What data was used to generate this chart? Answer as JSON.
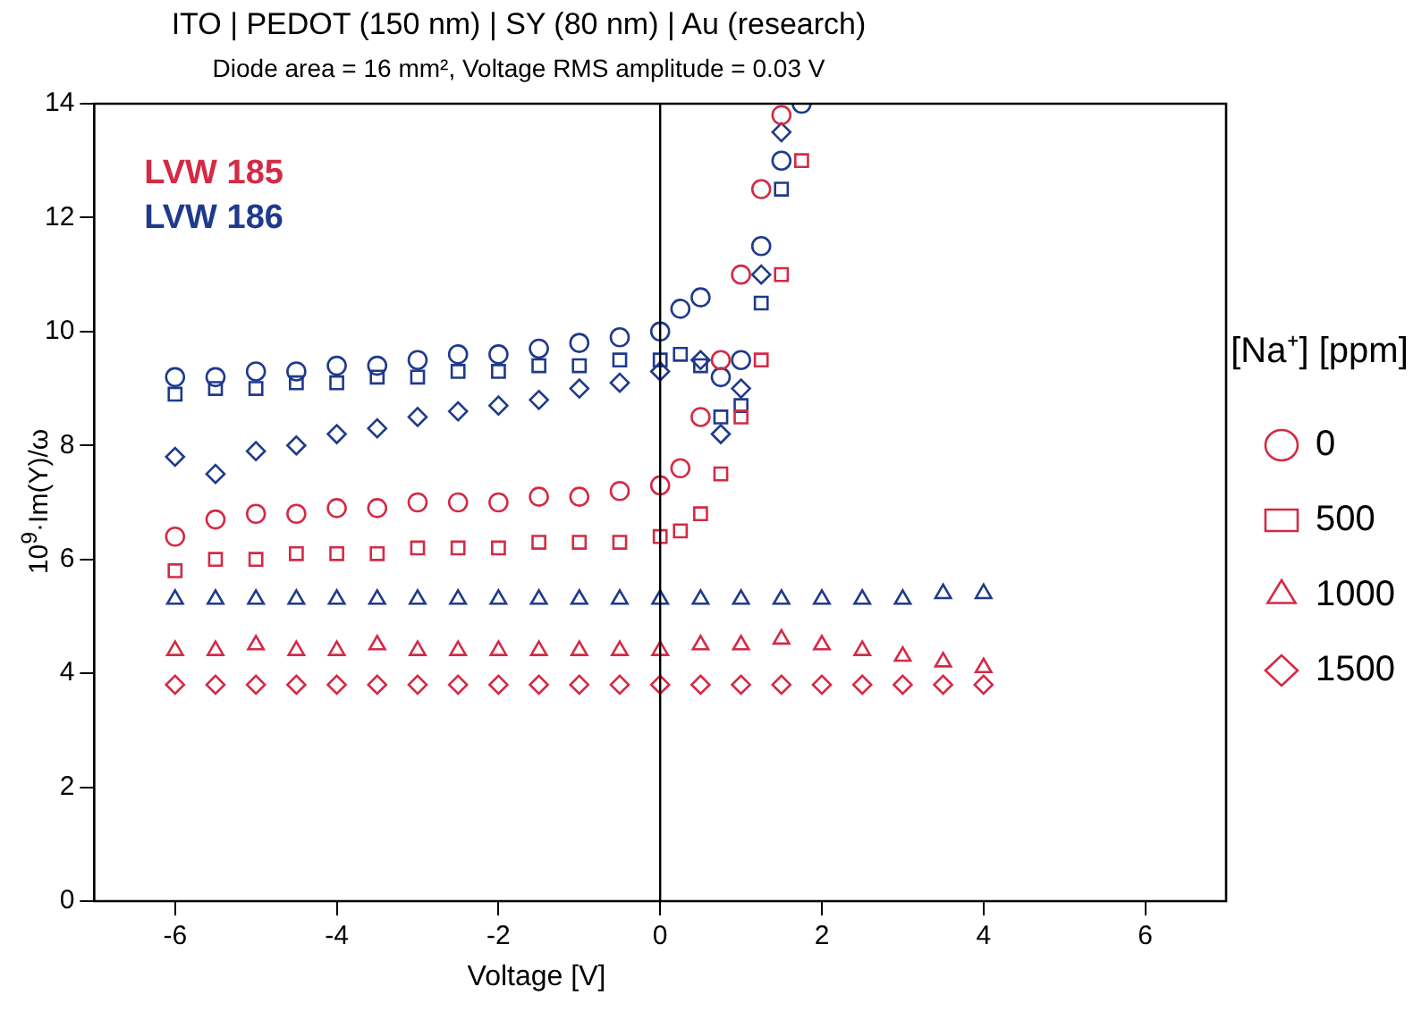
{
  "chart_data": {
    "type": "scatter",
    "title": "ITO | PEDOT (150 nm) | SY (80 nm) | Au (research)",
    "subtitle": "Diode area = 16 mm², Voltage RMS amplitude = 0.03 V",
    "xlabel": "Voltage [V]",
    "ylabel": "10$^{9}$·Im(Y)/ω",
    "legend_title": "[Na⁺] [ppm]",
    "legend": "right",
    "grid": false,
    "xlim": [
      -7,
      7
    ],
    "xticks": [
      -6,
      -4,
      -2,
      0,
      2,
      4,
      6
    ],
    "ylim": [
      0,
      14
    ],
    "yticks": [
      0,
      2,
      4,
      6,
      8,
      10,
      12,
      14
    ],
    "annotations": [
      "LVW 185",
      "LVW 186"
    ],
    "ref_lines": [
      {
        "axis": "x",
        "value": 0,
        "color": "#000000"
      }
    ],
    "series": [
      {
        "name": "0",
        "marker": "circle",
        "color": "#d42a45",
        "x": [
          -6,
          -5.5,
          -5,
          -4.5,
          -4,
          -3.5,
          -3,
          -2.5,
          -2,
          -1.5,
          -1,
          -0.5,
          0,
          0.25,
          0.5,
          0.75,
          1,
          1.25,
          1.5
        ],
        "values": [
          6.4,
          6.7,
          6.8,
          6.8,
          6.9,
          6.9,
          7.0,
          7.0,
          7.0,
          7.1,
          7.1,
          7.2,
          7.3,
          7.6,
          8.5,
          9.5,
          11.0,
          12.5,
          13.8
        ]
      },
      {
        "name": "500",
        "marker": "square",
        "color": "#d42a45",
        "x": [
          -6,
          -5.5,
          -5,
          -4.5,
          -4,
          -3.5,
          -3,
          -2.5,
          -2,
          -1.5,
          -1,
          -0.5,
          0,
          0.25,
          0.5,
          0.75,
          1,
          1.25,
          1.5,
          1.75
        ],
        "values": [
          5.8,
          6.0,
          6.0,
          6.1,
          6.1,
          6.1,
          6.2,
          6.2,
          6.2,
          6.3,
          6.3,
          6.3,
          6.4,
          6.5,
          6.8,
          7.5,
          8.5,
          9.5,
          11.0,
          13.0
        ]
      },
      {
        "name": "1000",
        "marker": "triangle",
        "color": "#d42a45",
        "x": [
          -6,
          -5.5,
          -5,
          -4.5,
          -4,
          -3.5,
          -3,
          -2.5,
          -2,
          -1.5,
          -1,
          -0.5,
          0,
          0.5,
          1,
          1.5,
          2,
          2.5,
          3,
          3.5,
          4
        ],
        "values": [
          4.4,
          4.4,
          4.5,
          4.4,
          4.4,
          4.5,
          4.4,
          4.4,
          4.4,
          4.4,
          4.4,
          4.4,
          4.4,
          4.5,
          4.5,
          4.6,
          4.5,
          4.4,
          4.3,
          4.2,
          4.1
        ]
      },
      {
        "name": "1500",
        "marker": "diamond",
        "color": "#d42a45",
        "x": [
          -6,
          -5.5,
          -5,
          -4.5,
          -4,
          -3.5,
          -3,
          -2.5,
          -2,
          -1.5,
          -1,
          -0.5,
          0,
          0.5,
          1,
          1.5,
          2,
          2.5,
          3,
          3.5,
          4
        ],
        "values": [
          3.8,
          3.8,
          3.8,
          3.8,
          3.8,
          3.8,
          3.8,
          3.8,
          3.8,
          3.8,
          3.8,
          3.8,
          3.8,
          3.8,
          3.8,
          3.8,
          3.8,
          3.8,
          3.8,
          3.8,
          3.8
        ]
      },
      {
        "marker": "circle",
        "color": "#1f3a8c",
        "x": [
          -6,
          -5.5,
          -5,
          -4.5,
          -4,
          -3.5,
          -3,
          -2.5,
          -2,
          -1.5,
          -1,
          -0.5,
          0,
          0.25,
          0.5,
          0.75,
          1,
          1.25,
          1.5,
          1.75
        ],
        "values": [
          9.2,
          9.2,
          9.3,
          9.3,
          9.4,
          9.4,
          9.5,
          9.6,
          9.6,
          9.7,
          9.8,
          9.9,
          10.0,
          10.4,
          10.6,
          9.2,
          9.5,
          11.5,
          13.0,
          14.0
        ]
      },
      {
        "marker": "square",
        "color": "#1f3a8c",
        "x": [
          -6,
          -5.5,
          -5,
          -4.5,
          -4,
          -3.5,
          -3,
          -2.5,
          -2,
          -1.5,
          -1,
          -0.5,
          0,
          0.25,
          0.5,
          0.75,
          1,
          1.25,
          1.5
        ],
        "values": [
          8.9,
          9.0,
          9.0,
          9.1,
          9.1,
          9.2,
          9.2,
          9.3,
          9.3,
          9.4,
          9.4,
          9.5,
          9.5,
          9.6,
          9.4,
          8.5,
          8.7,
          10.5,
          12.5
        ]
      },
      {
        "marker": "triangle",
        "color": "#1f3a8c",
        "x": [
          -6,
          -5.5,
          -5,
          -4.5,
          -4,
          -3.5,
          -3,
          -2.5,
          -2,
          -1.5,
          -1,
          -0.5,
          0,
          0.5,
          1,
          1.5,
          2,
          2.5,
          3,
          3.5,
          4
        ],
        "values": [
          5.3,
          5.3,
          5.3,
          5.3,
          5.3,
          5.3,
          5.3,
          5.3,
          5.3,
          5.3,
          5.3,
          5.3,
          5.3,
          5.3,
          5.3,
          5.3,
          5.3,
          5.3,
          5.3,
          5.4,
          5.4
        ]
      },
      {
        "marker": "diamond",
        "color": "#1f3a8c",
        "x": [
          -6,
          -5.5,
          -5,
          -4.5,
          -4,
          -3.5,
          -3,
          -2.5,
          -2,
          -1.5,
          -1,
          -0.5,
          0,
          0.5,
          0.75,
          1,
          1.25,
          1.5
        ],
        "values": [
          7.8,
          7.5,
          7.9,
          8.0,
          8.2,
          8.3,
          8.5,
          8.6,
          8.7,
          8.8,
          9.0,
          9.1,
          9.3,
          9.5,
          8.2,
          9.0,
          11.0,
          13.5
        ]
      }
    ]
  }
}
